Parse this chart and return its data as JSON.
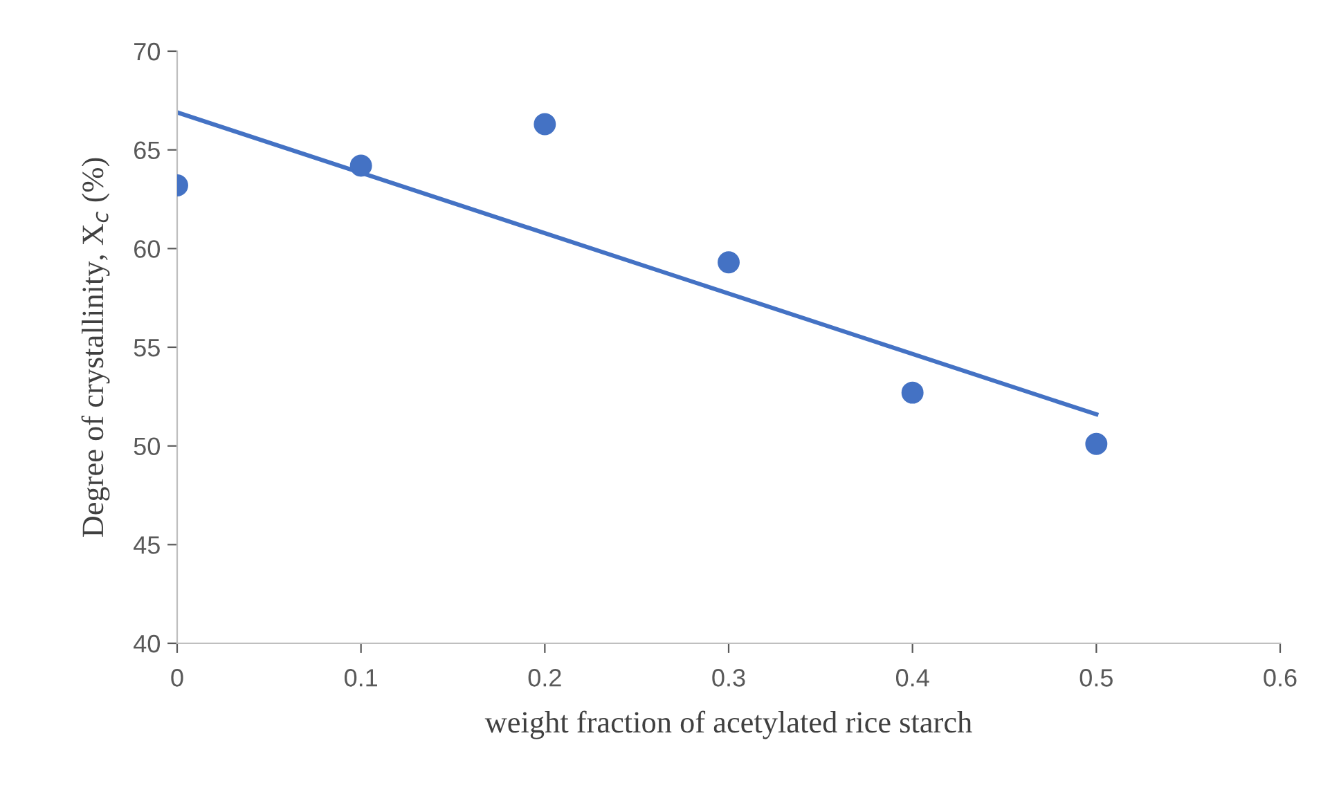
{
  "chart_data": {
    "type": "scatter",
    "xlabel": "weight fraction of acetylated rice starch",
    "ylabel": "Degree of crystallinity, X$_{c}$ (%)",
    "x": [
      0,
      0.1,
      0.2,
      0.3,
      0.4,
      0.5
    ],
    "series": [
      {
        "color": "#4472c4",
        "marker": "circle",
        "values": [
          63.2,
          64.2,
          66.3,
          59.3,
          52.7,
          50.1
        ]
      },
      {
        "type": "line",
        "color": "#4472c4",
        "marker": "none",
        "x": [
          0,
          0.5
        ],
        "values": [
          66.9,
          51.6
        ]
      }
    ],
    "xlim": [
      0,
      0.6
    ],
    "xticks": [
      0,
      0.1,
      0.2,
      0.3,
      0.4,
      0.5,
      0.6
    ],
    "ylim": [
      40,
      70
    ],
    "yticks": [
      40,
      45,
      50,
      55,
      60,
      65,
      70
    ],
    "grid": false,
    "legend": false
  }
}
